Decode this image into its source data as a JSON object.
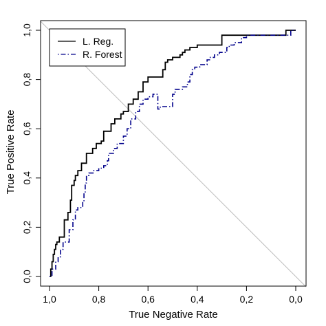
{
  "chart_data": {
    "type": "line",
    "xlabel": "True Negative Rate",
    "ylabel": "True Positive Rate",
    "xlim": [
      1.0,
      0.0
    ],
    "ylim": [
      0.0,
      1.0
    ],
    "x_reversed": true,
    "x_ticks": [
      {
        "value": 1.0,
        "label": "1,0"
      },
      {
        "value": 0.8,
        "label": "0,8"
      },
      {
        "value": 0.6,
        "label": "0,6"
      },
      {
        "value": 0.4,
        "label": "0,4"
      },
      {
        "value": 0.2,
        "label": "0,2"
      },
      {
        "value": 0.0,
        "label": "0,0"
      }
    ],
    "y_ticks": [
      {
        "value": 0.0,
        "label": "0,0"
      },
      {
        "value": 0.2,
        "label": "0,2"
      },
      {
        "value": 0.4,
        "label": "0,4"
      },
      {
        "value": 0.6,
        "label": "0,6"
      },
      {
        "value": 0.8,
        "label": "0,8"
      },
      {
        "value": 1.0,
        "label": "1,0"
      }
    ],
    "grid": false,
    "legend_position": "top-left",
    "diagonal_color": "#bebebe",
    "series": [
      {
        "name": "L. Reg.",
        "color": "#000000",
        "dash": "solid",
        "points": [
          [
            1.0,
            0.0
          ],
          [
            0.995,
            0.0
          ],
          [
            0.995,
            0.03
          ],
          [
            0.99,
            0.03
          ],
          [
            0.99,
            0.06
          ],
          [
            0.985,
            0.06
          ],
          [
            0.985,
            0.09
          ],
          [
            0.98,
            0.09
          ],
          [
            0.98,
            0.11
          ],
          [
            0.975,
            0.11
          ],
          [
            0.975,
            0.13
          ],
          [
            0.97,
            0.13
          ],
          [
            0.97,
            0.14
          ],
          [
            0.96,
            0.14
          ],
          [
            0.96,
            0.16
          ],
          [
            0.94,
            0.16
          ],
          [
            0.94,
            0.23
          ],
          [
            0.925,
            0.23
          ],
          [
            0.925,
            0.26
          ],
          [
            0.915,
            0.26
          ],
          [
            0.915,
            0.31
          ],
          [
            0.91,
            0.31
          ],
          [
            0.91,
            0.37
          ],
          [
            0.9,
            0.37
          ],
          [
            0.9,
            0.39
          ],
          [
            0.895,
            0.39
          ],
          [
            0.895,
            0.41
          ],
          [
            0.885,
            0.41
          ],
          [
            0.885,
            0.43
          ],
          [
            0.87,
            0.43
          ],
          [
            0.87,
            0.46
          ],
          [
            0.85,
            0.46
          ],
          [
            0.85,
            0.5
          ],
          [
            0.825,
            0.5
          ],
          [
            0.825,
            0.52
          ],
          [
            0.81,
            0.52
          ],
          [
            0.81,
            0.54
          ],
          [
            0.79,
            0.54
          ],
          [
            0.79,
            0.55
          ],
          [
            0.78,
            0.55
          ],
          [
            0.78,
            0.59
          ],
          [
            0.75,
            0.59
          ],
          [
            0.75,
            0.62
          ],
          [
            0.735,
            0.62
          ],
          [
            0.735,
            0.64
          ],
          [
            0.71,
            0.64
          ],
          [
            0.71,
            0.66
          ],
          [
            0.7,
            0.66
          ],
          [
            0.7,
            0.67
          ],
          [
            0.68,
            0.67
          ],
          [
            0.68,
            0.7
          ],
          [
            0.66,
            0.7
          ],
          [
            0.66,
            0.72
          ],
          [
            0.64,
            0.72
          ],
          [
            0.64,
            0.75
          ],
          [
            0.62,
            0.75
          ],
          [
            0.62,
            0.79
          ],
          [
            0.6,
            0.79
          ],
          [
            0.6,
            0.81
          ],
          [
            0.54,
            0.81
          ],
          [
            0.54,
            0.84
          ],
          [
            0.53,
            0.84
          ],
          [
            0.53,
            0.87
          ],
          [
            0.52,
            0.87
          ],
          [
            0.52,
            0.88
          ],
          [
            0.5,
            0.88
          ],
          [
            0.5,
            0.89
          ],
          [
            0.47,
            0.89
          ],
          [
            0.47,
            0.9
          ],
          [
            0.46,
            0.9
          ],
          [
            0.46,
            0.91
          ],
          [
            0.45,
            0.91
          ],
          [
            0.45,
            0.92
          ],
          [
            0.43,
            0.92
          ],
          [
            0.43,
            0.93
          ],
          [
            0.4,
            0.93
          ],
          [
            0.4,
            0.94
          ],
          [
            0.3,
            0.94
          ],
          [
            0.3,
            0.98
          ],
          [
            0.04,
            0.98
          ],
          [
            0.04,
            1.0
          ],
          [
            0.0,
            1.0
          ]
        ]
      },
      {
        "name": "R. Forest",
        "color": "#00008b",
        "dash": "dotdash",
        "points": [
          [
            1.0,
            0.0
          ],
          [
            0.99,
            0.0
          ],
          [
            0.99,
            0.03
          ],
          [
            0.975,
            0.03
          ],
          [
            0.975,
            0.06
          ],
          [
            0.965,
            0.06
          ],
          [
            0.965,
            0.08
          ],
          [
            0.955,
            0.08
          ],
          [
            0.955,
            0.11
          ],
          [
            0.945,
            0.11
          ],
          [
            0.945,
            0.14
          ],
          [
            0.92,
            0.14
          ],
          [
            0.92,
            0.19
          ],
          [
            0.905,
            0.19
          ],
          [
            0.905,
            0.23
          ],
          [
            0.895,
            0.23
          ],
          [
            0.895,
            0.27
          ],
          [
            0.885,
            0.27
          ],
          [
            0.885,
            0.28
          ],
          [
            0.865,
            0.28
          ],
          [
            0.865,
            0.3
          ],
          [
            0.86,
            0.3
          ],
          [
            0.86,
            0.34
          ],
          [
            0.855,
            0.34
          ],
          [
            0.855,
            0.38
          ],
          [
            0.85,
            0.38
          ],
          [
            0.85,
            0.41
          ],
          [
            0.84,
            0.41
          ],
          [
            0.84,
            0.42
          ],
          [
            0.82,
            0.42
          ],
          [
            0.82,
            0.43
          ],
          [
            0.8,
            0.43
          ],
          [
            0.8,
            0.44
          ],
          [
            0.78,
            0.44
          ],
          [
            0.78,
            0.45
          ],
          [
            0.765,
            0.45
          ],
          [
            0.765,
            0.47
          ],
          [
            0.76,
            0.47
          ],
          [
            0.76,
            0.5
          ],
          [
            0.74,
            0.5
          ],
          [
            0.74,
            0.52
          ],
          [
            0.725,
            0.52
          ],
          [
            0.725,
            0.54
          ],
          [
            0.7,
            0.54
          ],
          [
            0.7,
            0.57
          ],
          [
            0.685,
            0.57
          ],
          [
            0.685,
            0.6
          ],
          [
            0.67,
            0.6
          ],
          [
            0.67,
            0.64
          ],
          [
            0.65,
            0.64
          ],
          [
            0.65,
            0.67
          ],
          [
            0.635,
            0.67
          ],
          [
            0.635,
            0.7
          ],
          [
            0.62,
            0.7
          ],
          [
            0.62,
            0.72
          ],
          [
            0.6,
            0.72
          ],
          [
            0.6,
            0.73
          ],
          [
            0.58,
            0.73
          ],
          [
            0.58,
            0.74
          ],
          [
            0.56,
            0.74
          ],
          [
            0.56,
            0.68
          ],
          [
            0.55,
            0.68
          ],
          [
            0.55,
            0.69
          ],
          [
            0.5,
            0.69
          ],
          [
            0.5,
            0.74
          ],
          [
            0.49,
            0.74
          ],
          [
            0.49,
            0.76
          ],
          [
            0.46,
            0.76
          ],
          [
            0.46,
            0.77
          ],
          [
            0.44,
            0.77
          ],
          [
            0.44,
            0.79
          ],
          [
            0.43,
            0.79
          ],
          [
            0.43,
            0.82
          ],
          [
            0.42,
            0.82
          ],
          [
            0.42,
            0.84
          ],
          [
            0.41,
            0.84
          ],
          [
            0.41,
            0.85
          ],
          [
            0.39,
            0.85
          ],
          [
            0.39,
            0.86
          ],
          [
            0.36,
            0.86
          ],
          [
            0.36,
            0.88
          ],
          [
            0.35,
            0.88
          ],
          [
            0.35,
            0.89
          ],
          [
            0.33,
            0.89
          ],
          [
            0.33,
            0.9
          ],
          [
            0.31,
            0.9
          ],
          [
            0.31,
            0.91
          ],
          [
            0.28,
            0.91
          ],
          [
            0.28,
            0.93
          ],
          [
            0.27,
            0.93
          ],
          [
            0.27,
            0.94
          ],
          [
            0.25,
            0.94
          ],
          [
            0.25,
            0.95
          ],
          [
            0.22,
            0.95
          ],
          [
            0.22,
            0.97
          ],
          [
            0.2,
            0.97
          ],
          [
            0.2,
            0.98
          ],
          [
            0.02,
            0.98
          ],
          [
            0.02,
            1.0
          ],
          [
            0.0,
            1.0
          ]
        ]
      }
    ]
  }
}
